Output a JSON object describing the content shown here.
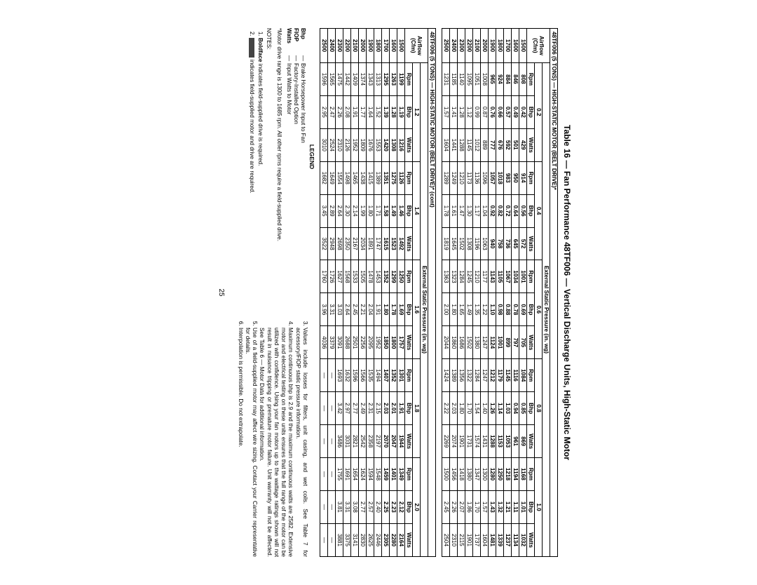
{
  "title": "Table 16 — Fan Performance 48TF006 — Vertical Discharge Units, High-Static Motor",
  "page_number": "25",
  "section1_heading": "48TF006 (5 TONS) — HIGH-STATIC MOTOR (BELT DRIVE)*",
  "section2_heading": "48TF006 (5 TONS) — HIGH-STATIC MOTOR (BELT DRIVE)* (cont)",
  "airflow_label": [
    "Airflow",
    "(Cfm)"
  ],
  "esp_label": "External Static Pressure (in. wg)",
  "esp1": [
    "0.2",
    "0.4",
    "0.6",
    "0.8",
    "1.0"
  ],
  "esp2": [
    "1.2",
    "1.4",
    "1.6",
    "1.8",
    "2.0"
  ],
  "sub": [
    "Rpm",
    "Bhp",
    "Watts"
  ],
  "legend": {
    "title": "LEGEND",
    "items": [
      {
        "k": "Bhp",
        "v": "Brake Horsepower Input to Fan"
      },
      {
        "k": "FIOP",
        "v": "Factory-Installed Option"
      },
      {
        "k": "Watts",
        "v": "Input Watts to Motor"
      }
    ],
    "star": "*Motor drive range is 1300 to 1685 rpm. All other rpms require a field-supplied drive.",
    "notes_label": "NOTES:",
    "notes12": [
      "<b>Boldface</b> indicates field-supplied drive is required.",
      "<span class='swatch'></span>indicates field-supplied motor and drive are required."
    ],
    "notes3": "Values include losses for filters, unit casing, and wet coils. See Table 7 for accessory/FIOP static pressure information.",
    "notes4": "Maximum continuous bhp is 2.9 and the maximum continuous watts are 2582. Extensive motor and electrical testing on these units ensures that the full range of the motor can be utilized with confidence. Using your fan motors up to the wattage ratings shown will not result in nuisance tripping or premature motor failure. Unit warranty will not be affected. See Table 6 — Motor Data for additional information.",
    "notes5": "Use of a field-supplied motor may affect wire sizing. Contact your Carrier representative for details.",
    "notes6": "Interpolation is permissible. Do not extrapolate."
  },
  "t1": [
    {
      "b": true,
      "c": [
        "1500",
        "808",
        "0.42",
        "429",
        "914",
        "0.56",
        "572",
        "1001",
        "0.69",
        "705",
        "1084",
        "0.85",
        "869",
        "1168",
        "1.01",
        "1032"
      ]
    },
    {
      "b": true,
      "c": [
        "1600",
        "846",
        "0.49",
        "501",
        "950",
        "0.64",
        "645",
        "1034",
        "0.78",
        "797",
        "1116",
        "0.94",
        "961",
        "1194",
        "1.11",
        "1134"
      ]
    },
    {
      "b": true,
      "c": [
        "1700",
        "884",
        "0.57",
        "592",
        "983",
        "0.72",
        "736",
        "1067",
        "0.88",
        "899",
        "1145",
        "1.03",
        "1053",
        "1218",
        "1.21",
        "1237"
      ]
    },
    {
      "b": true,
      "c": [
        "1800",
        "924",
        "0.66",
        "676",
        "1018",
        "0.82",
        "758",
        "1105",
        "0.98",
        "1001",
        "1179",
        "1.14",
        "1153",
        "1250",
        "1.32",
        "1339"
      ]
    },
    {
      "b": true,
      "c": [
        "1900",
        "965",
        "0.76",
        "777",
        "1057",
        "0.92",
        "940",
        "1143",
        "1.10",
        "1124",
        "1212",
        "1.26",
        "1288",
        "1280",
        "1.43",
        "1481"
      ]
    },
    {
      "b": false,
      "c": [
        "2000",
        "1008",
        "0.87",
        "889",
        "1096",
        "1.04",
        "1063",
        "1177",
        "1.22",
        "1247",
        "1247",
        "1.40",
        "1431",
        "1300",
        "1.57",
        "1604"
      ]
    },
    {
      "b": false,
      "c": [
        "2100",
        "1051",
        "0.99",
        "1012",
        "1136",
        "1.17",
        "1196",
        "1210",
        "1.35",
        "1380",
        "1284",
        "1.54",
        "1574",
        "1347",
        "1.70",
        "1737"
      ]
    },
    {
      "b": false,
      "c": [
        "2200",
        "1095",
        "1.12",
        "1145",
        "1173",
        "1.30",
        "1308",
        "1245",
        "1.49",
        "1502",
        "1322",
        "1.70",
        "1731",
        "1380",
        "1.86",
        "1901"
      ]
    },
    {
      "b": false,
      "c": [
        "2300",
        "1140",
        "1.28",
        "1288",
        "1210",
        "1.47",
        "1502",
        "1284",
        "1.65",
        "1686",
        "1356",
        "1.80",
        "1901",
        "1418",
        "2.07",
        "2115"
      ]
    },
    {
      "b": false,
      "c": [
        "2400",
        "1185",
        "1.41",
        "1441",
        "1249",
        "1.61",
        "1645",
        "1323",
        "1.80",
        "1860",
        "1389",
        "2.03",
        "2074",
        "1456",
        "2.26",
        "2310"
      ]
    },
    {
      "b": false,
      "c": [
        "2500",
        "1231",
        "1.57",
        "1604",
        "1289",
        "1.78",
        "1819",
        "1363",
        "2.00",
        "2044",
        "1424",
        "2.22",
        "2269",
        "1500",
        "2.45",
        "2504"
      ]
    }
  ],
  "t2": [
    {
      "b": true,
      "c": [
        "1500",
        "1199",
        "1.19",
        "1216",
        "1126",
        "1.46",
        "1492",
        "1250",
        "1.69",
        "1757",
        "1301",
        "1.91",
        "1944",
        "1349",
        "2.12",
        "2164"
      ]
    },
    {
      "b": true,
      "c": [
        "1600",
        "1263",
        "1.28",
        "1308",
        "1275",
        "1.49",
        "1523",
        "1299",
        "1.78",
        "1800",
        "1352",
        "2.01",
        "2047",
        "1401",
        "2.23",
        "2280"
      ]
    },
    {
      "b": true,
      "c": [
        "1700",
        "1295",
        "1.39",
        "1420",
        "1351",
        "1.58",
        "1615",
        "1352",
        "1.80",
        "1850",
        "1407",
        "2.03",
        "2070",
        "1459",
        "2.25",
        "2305"
      ]
    },
    {
      "b": false,
      "c": [
        "1800",
        "1313",
        "1.52",
        "1553",
        "1389",
        "1.71",
        "1747",
        "1453",
        "1.91",
        "1952",
        "1494",
        "2.15",
        "2197",
        "1548",
        "2.40",
        "2446"
      ]
    },
    {
      "b": false,
      "c": [
        "1900",
        "1343",
        "1.64",
        "1676",
        "1415",
        "1.80",
        "1891",
        "1478",
        "2.04",
        "2095",
        "1535",
        "2.31",
        "2358",
        "1594",
        "2.57",
        "2625"
      ]
    },
    {
      "b": false,
      "c": [
        "2000",
        "1374",
        "1.77",
        "1809",
        "1438",
        "1.99",
        "2034",
        "1505",
        "2.21",
        "2256",
        "1566",
        "2.49",
        "2542",
        "1624",
        "2.77",
        "2830"
      ]
    },
    {
      "b": false,
      "c": [
        "2100",
        "1409",
        "1.91",
        "1952",
        "1465",
        "2.14",
        "2167",
        "1533",
        "2.45",
        "2501",
        "1596",
        "2.77",
        "2821",
        "1654",
        "3.08",
        "3141"
      ]
    },
    {
      "b": false,
      "c": [
        "2200",
        "1442",
        "2.08",
        "2126",
        "1498",
        "2.30",
        "2350",
        "1568",
        "2.64",
        "2688",
        "1632",
        "2.97",
        "3031",
        "1691",
        "3.31",
        "3375"
      ]
    },
    {
      "b": false,
      "c": [
        "2300",
        "1475",
        "2.26",
        "2310",
        "1554",
        "2.64",
        "2698",
        "1627",
        "3.03",
        "3091",
        "1693",
        "3.42",
        "3486",
        "1755",
        "3.81",
        "3881"
      ]
    },
    {
      "b": false,
      "c": [
        "2400",
        "1565",
        "2.47",
        "2524",
        "1649",
        "2.89",
        "2948",
        "1726",
        "3.31",
        "3379",
        "—",
        "—",
        "—",
        "—",
        "—",
        "—"
      ]
    },
    {
      "b": false,
      "c": [
        "2500",
        "1596",
        "2.95",
        "3010",
        "1682",
        "3.45",
        "3522",
        "1760",
        "3.96",
        "4036",
        "—",
        "—",
        "—",
        "—",
        "—",
        "—"
      ]
    }
  ]
}
